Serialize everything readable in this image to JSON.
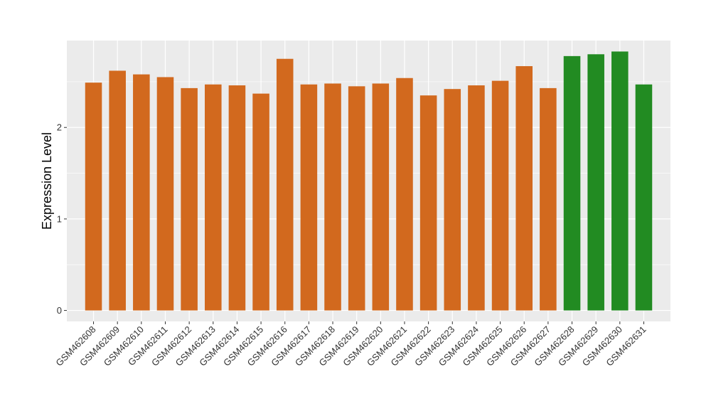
{
  "chart_data": {
    "type": "bar",
    "title": "",
    "xlabel": "",
    "ylabel": "Expression Level",
    "ylim": [
      -0.12,
      2.95
    ],
    "yticks": [
      0,
      1,
      2
    ],
    "grid": true,
    "legend": "none",
    "colors": {
      "panel": "#EBEBEB",
      "grid": "#FFFFFF",
      "default_bar": "#D2691E",
      "highlight_bar": "#228B22"
    },
    "categories": [
      "GSM462608",
      "GSM462609",
      "GSM462610",
      "GSM462611",
      "GSM462612",
      "GSM462613",
      "GSM462614",
      "GSM462615",
      "GSM462616",
      "GSM462617",
      "GSM462618",
      "GSM462619",
      "GSM462620",
      "GSM462621",
      "GSM462622",
      "GSM462623",
      "GSM462624",
      "GSM462625",
      "GSM462626",
      "GSM462627",
      "GSM462628",
      "GSM462629",
      "GSM462630",
      "GSM462631"
    ],
    "values": [
      2.49,
      2.62,
      2.58,
      2.55,
      2.43,
      2.47,
      2.46,
      2.37,
      2.75,
      2.47,
      2.48,
      2.45,
      2.48,
      2.54,
      2.35,
      2.42,
      2.46,
      2.51,
      2.67,
      2.43,
      2.78,
      2.8,
      2.83,
      2.47
    ],
    "bar_colors": [
      "#D2691E",
      "#D2691E",
      "#D2691E",
      "#D2691E",
      "#D2691E",
      "#D2691E",
      "#D2691E",
      "#D2691E",
      "#D2691E",
      "#D2691E",
      "#D2691E",
      "#D2691E",
      "#D2691E",
      "#D2691E",
      "#D2691E",
      "#D2691E",
      "#D2691E",
      "#D2691E",
      "#D2691E",
      "#D2691E",
      "#228B22",
      "#228B22",
      "#228B22",
      "#228B22"
    ]
  }
}
